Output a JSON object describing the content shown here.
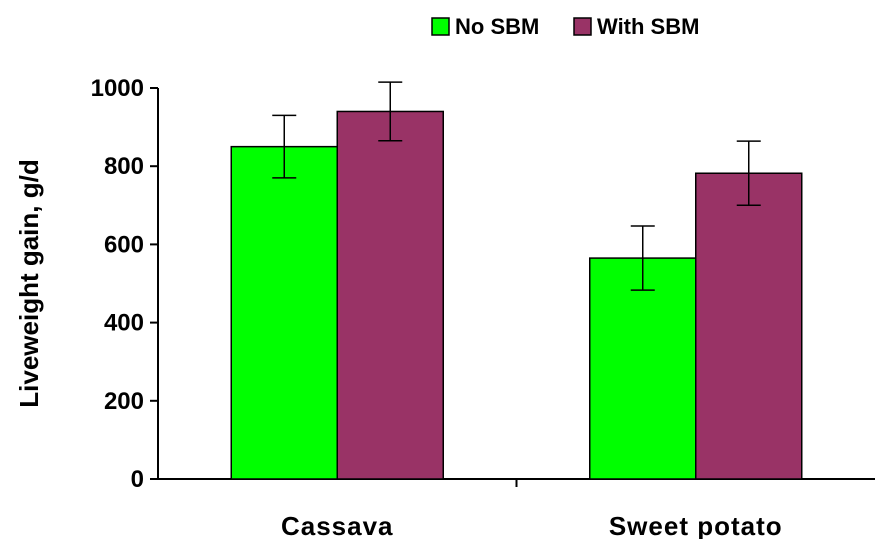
{
  "chart_data": {
    "type": "bar",
    "title": "",
    "xlabel": "",
    "ylabel": "Liveweight gain, g/d",
    "ylim": [
      0,
      1000
    ],
    "yticks": [
      0,
      200,
      400,
      600,
      800,
      1000
    ],
    "categories": [
      "Cassava",
      "Sweet potato"
    ],
    "series": [
      {
        "name": "No SBM",
        "color": "#00ff00",
        "values": [
          850,
          565
        ],
        "errors": [
          80,
          82
        ]
      },
      {
        "name": "With SBM",
        "color": "#993366",
        "values": [
          940,
          782
        ],
        "errors": [
          75,
          82
        ]
      }
    ],
    "grid": false,
    "legend_position": "top-right"
  }
}
